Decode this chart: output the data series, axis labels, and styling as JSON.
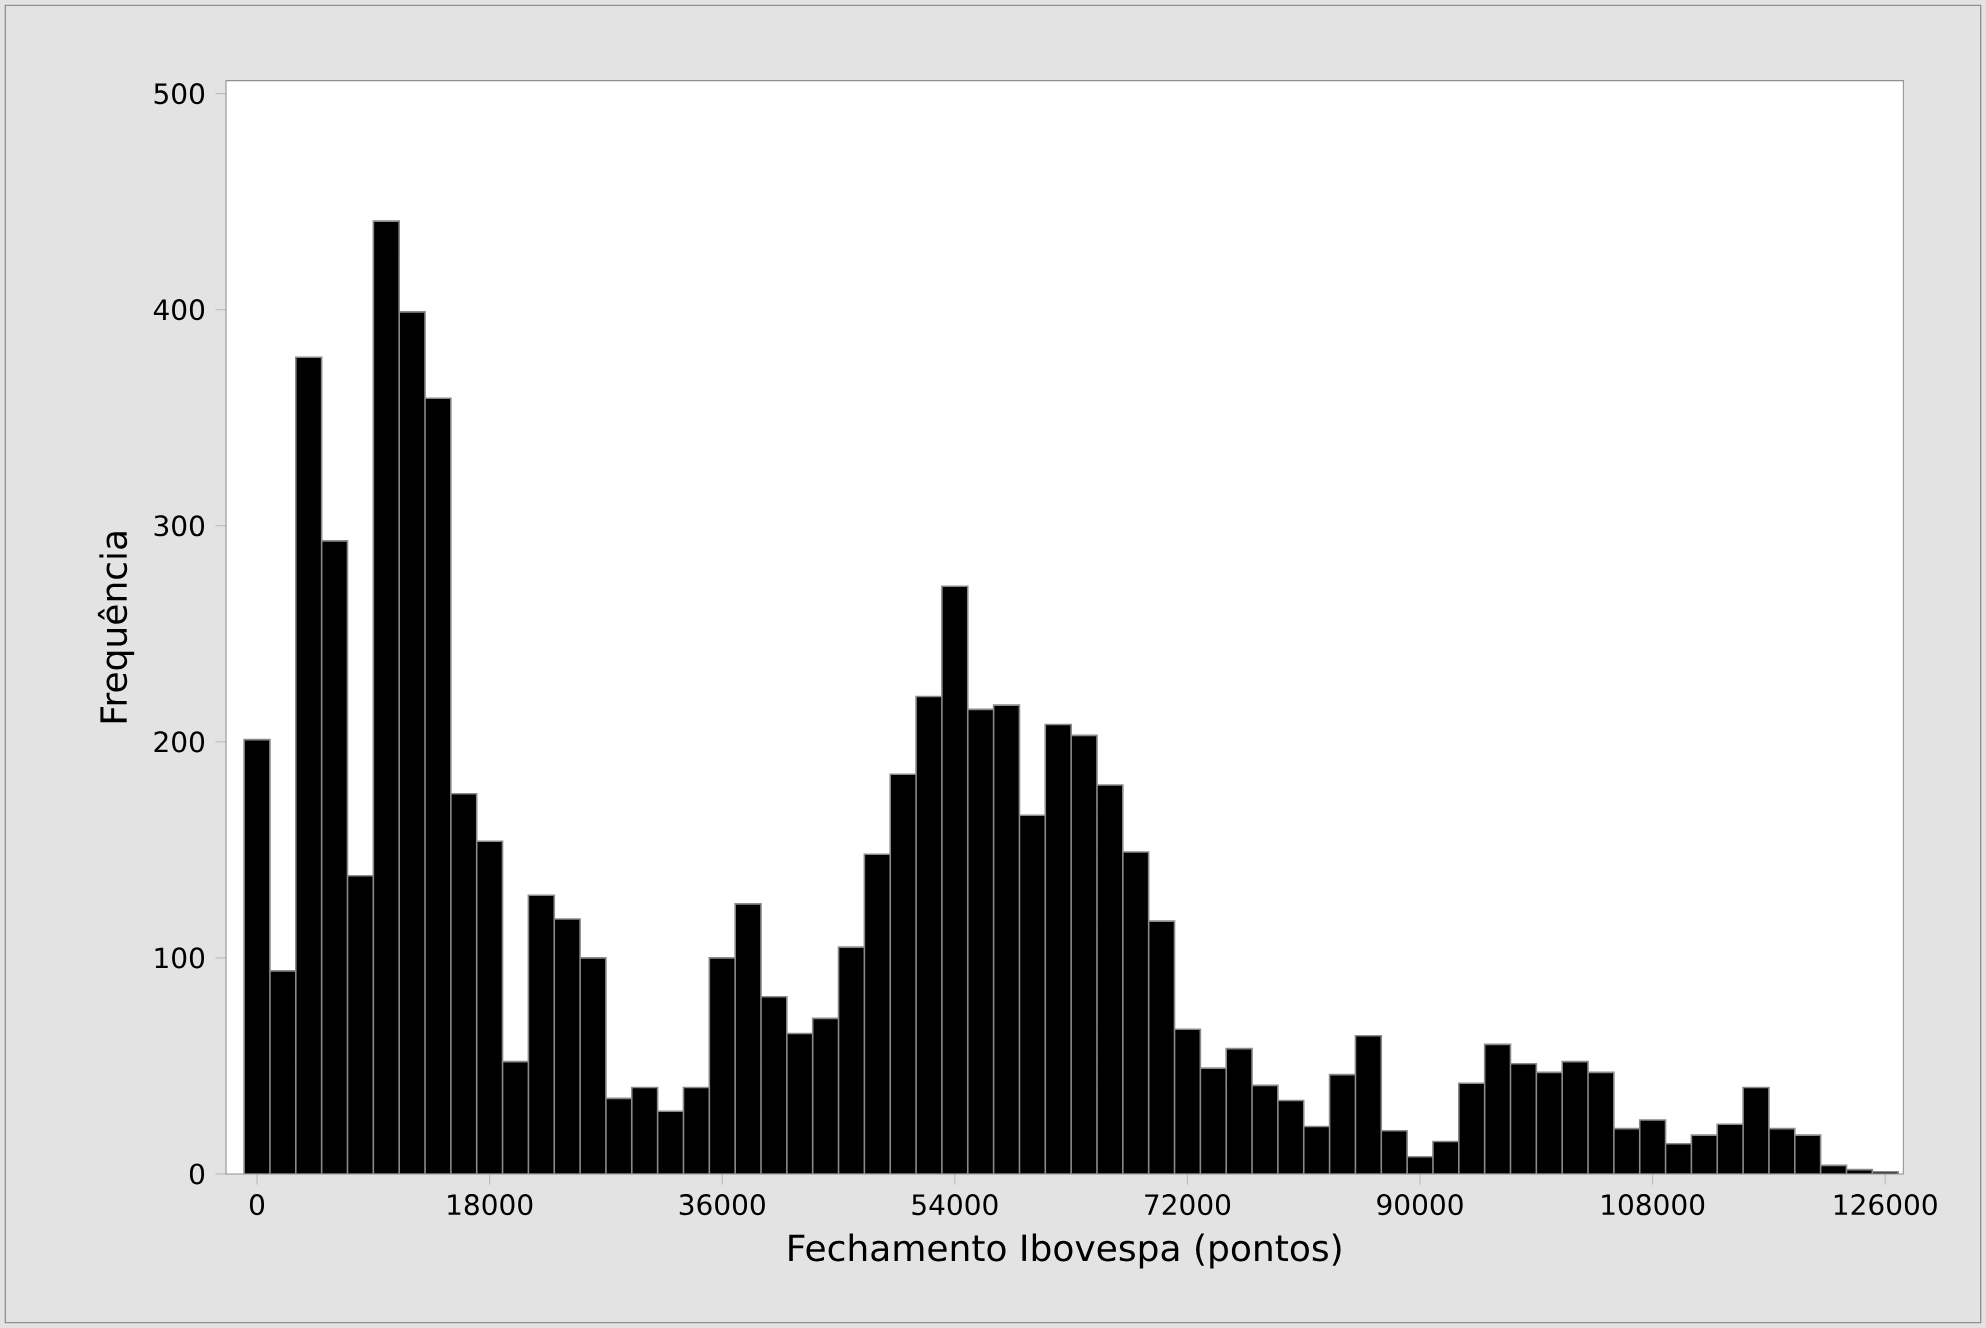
{
  "chart_data": {
    "type": "histogram",
    "xlabel": "Fechamento Ibovespa (pontos)",
    "ylabel": "Frequência",
    "bins": [
      -1000,
      1000,
      3000,
      5000,
      7000,
      9000,
      11000,
      13000,
      15000,
      17000,
      19000,
      21000,
      23000,
      25000,
      27000,
      29000,
      31000,
      33000,
      35000,
      37000,
      39000,
      41000,
      43000,
      45000,
      47000,
      49000,
      51000,
      53000,
      55000,
      57000,
      59000,
      61000,
      63000,
      65000,
      67000,
      69000,
      71000,
      73000,
      75000,
      77000,
      79000,
      81000,
      83000,
      85000,
      87000,
      89000,
      91000,
      93000,
      95000,
      97000,
      99000,
      101000,
      103000,
      105000,
      107000,
      109000,
      111000,
      113000,
      115000,
      117000,
      119000,
      121000,
      123000,
      125000,
      127000
    ],
    "values": [
      201,
      94,
      378,
      293,
      138,
      441,
      399,
      359,
      176,
      154,
      52,
      129,
      118,
      100,
      35,
      40,
      29,
      40,
      100,
      125,
      82,
      65,
      72,
      105,
      148,
      185,
      221,
      272,
      215,
      217,
      166,
      208,
      203,
      180,
      149,
      117,
      67,
      49,
      58,
      41,
      34,
      22,
      46,
      64,
      20,
      8,
      15,
      42,
      60,
      51,
      47,
      52,
      47,
      21,
      25,
      14,
      18,
      23,
      40,
      21,
      18,
      4,
      2,
      1
    ],
    "color": "#000000",
    "xlim": [
      -2400,
      127400
    ],
    "ylim": [
      0,
      506
    ],
    "xticks": [
      0,
      18000,
      36000,
      54000,
      72000,
      90000,
      108000,
      126000
    ],
    "yticks": [
      0,
      100,
      200,
      300,
      400,
      500
    ],
    "grid": false
  }
}
